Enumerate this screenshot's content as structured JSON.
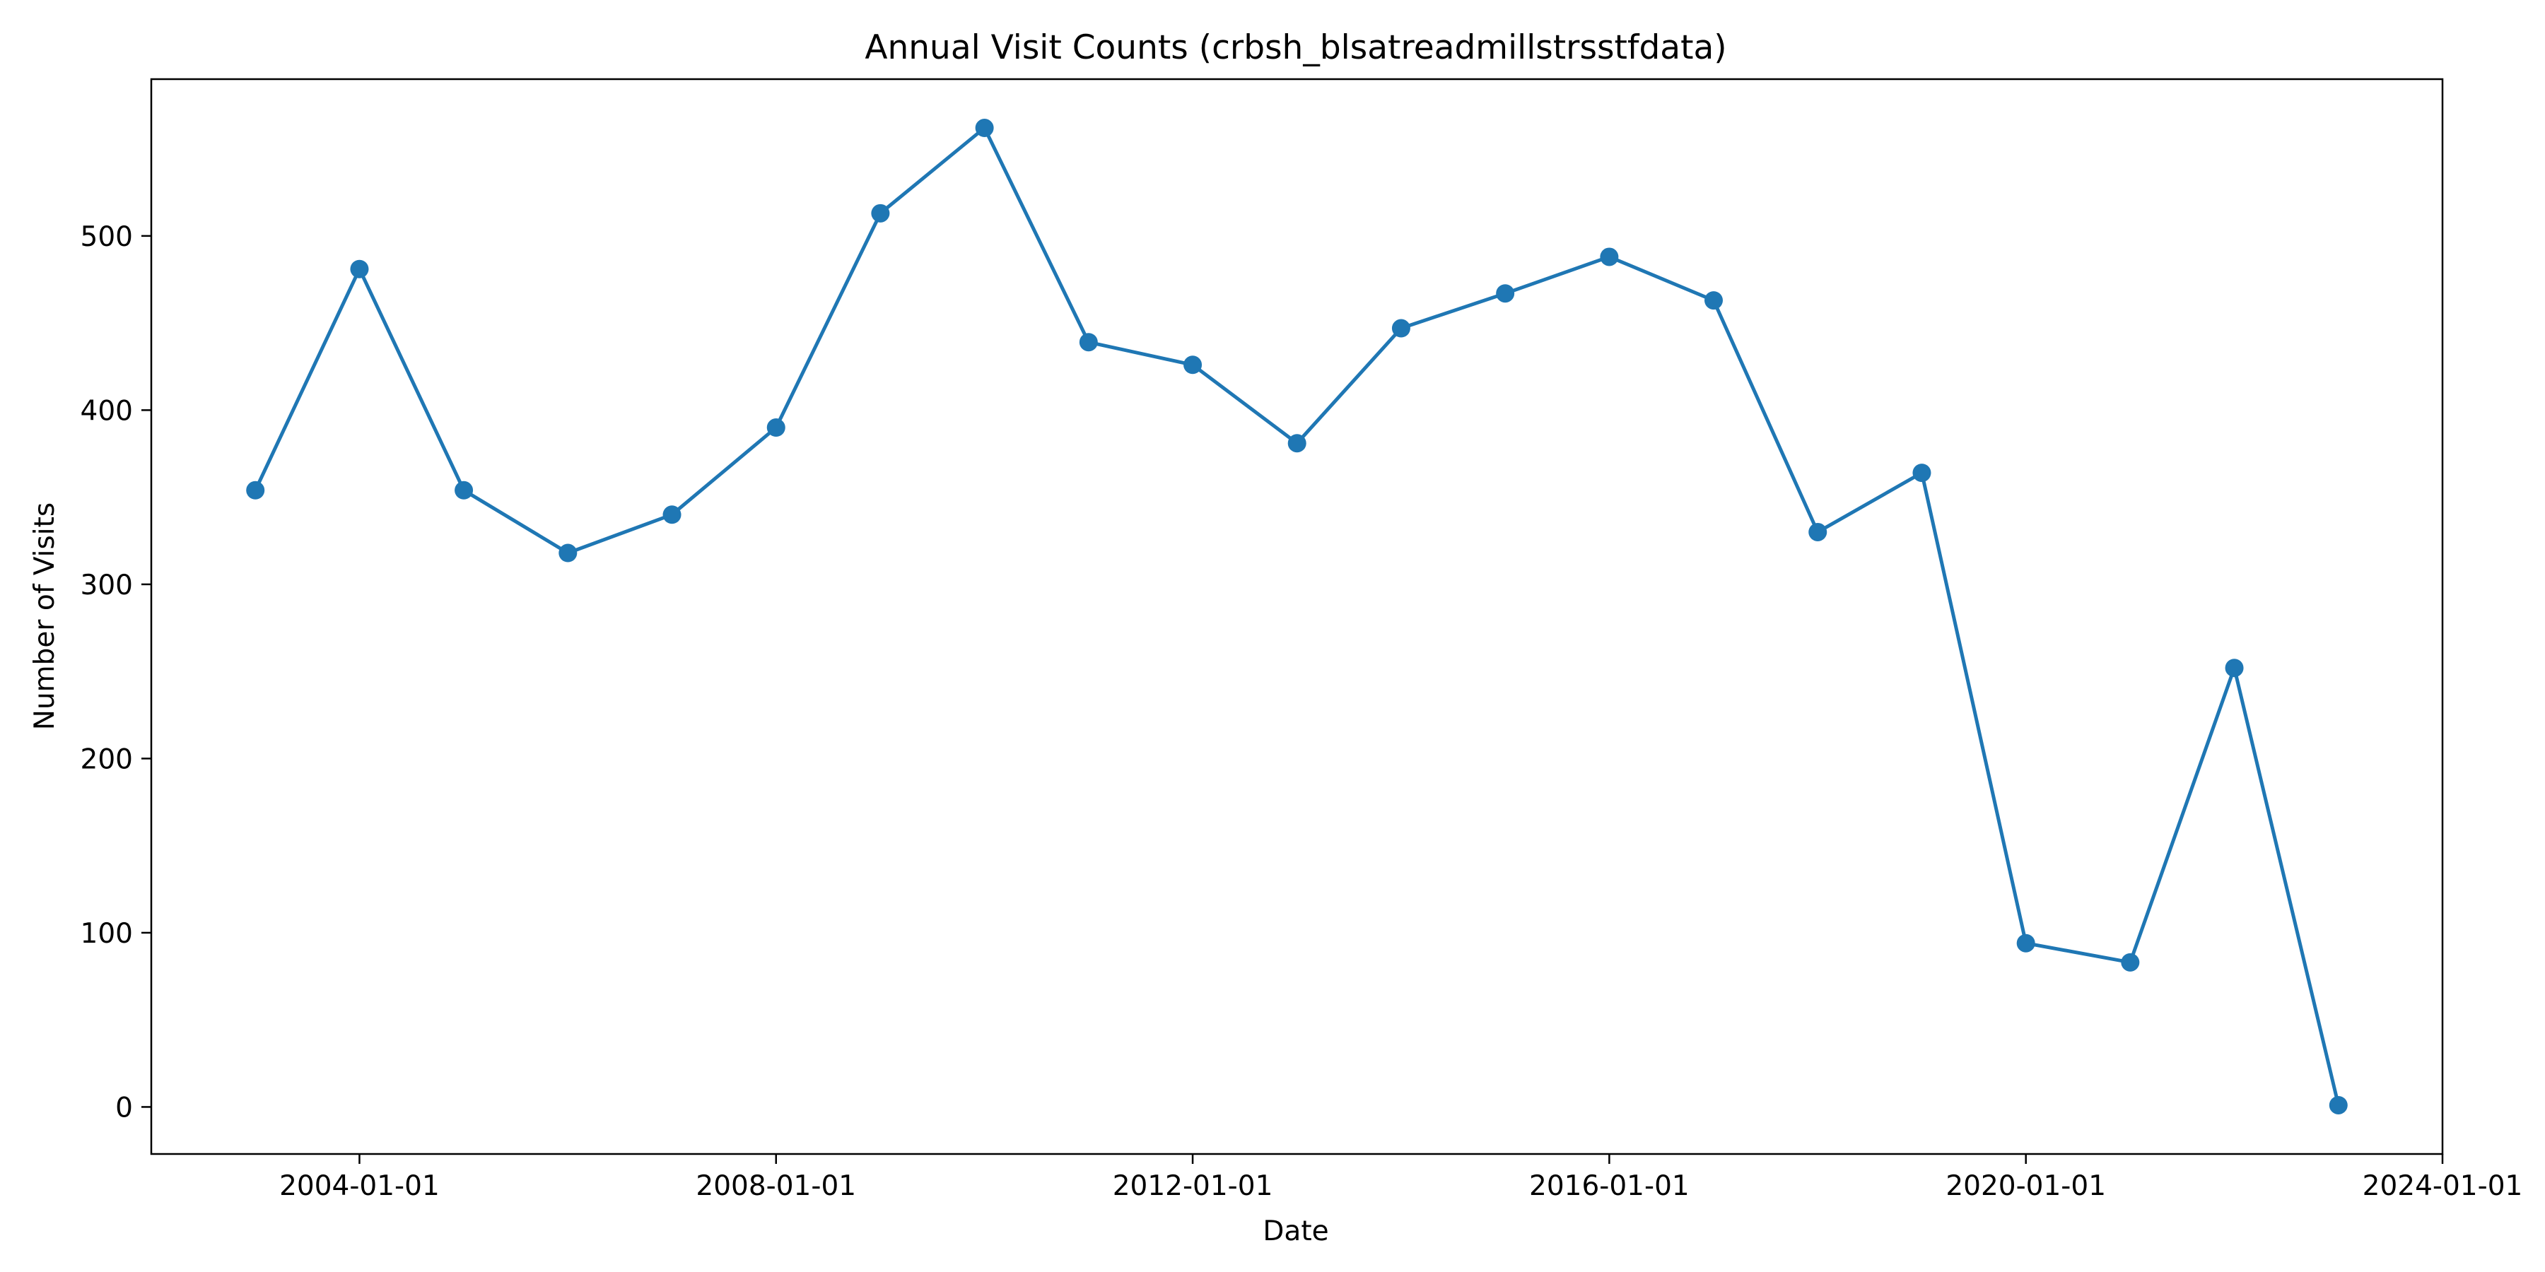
{
  "chart_data": {
    "type": "line",
    "title": "Annual Visit Counts (crbsh_blsatreadmillstrsstfdata)",
    "xlabel": "Date",
    "ylabel": "Number of Visits",
    "x_tick_labels": [
      "2004-01-01",
      "2008-01-01",
      "2012-01-01",
      "2016-01-01",
      "2020-01-01",
      "2024-01-01"
    ],
    "y_ticks": [
      0,
      100,
      200,
      300,
      400,
      500
    ],
    "xlim": [
      "2002-01-01",
      "2024-01-01"
    ],
    "ylim": [
      -27,
      590
    ],
    "grid": false,
    "legend": "none",
    "line_color": "#1f77b4",
    "series": [
      {
        "x": [
          "2003-01-01",
          "2004-01-01",
          "2005-01-01",
          "2006-01-01",
          "2007-01-01",
          "2008-01-01",
          "2009-01-01",
          "2010-01-01",
          "2011-01-01",
          "2012-01-01",
          "2013-01-01",
          "2014-01-01",
          "2015-01-01",
          "2016-01-01",
          "2017-01-01",
          "2018-01-01",
          "2019-01-01",
          "2020-01-01",
          "2021-01-01",
          "2022-01-01",
          "2023-01-01"
        ],
        "values": [
          354,
          481,
          354,
          318,
          340,
          390,
          513,
          562,
          439,
          426,
          381,
          447,
          467,
          488,
          463,
          330,
          364,
          94,
          83,
          252,
          1
        ]
      }
    ]
  }
}
